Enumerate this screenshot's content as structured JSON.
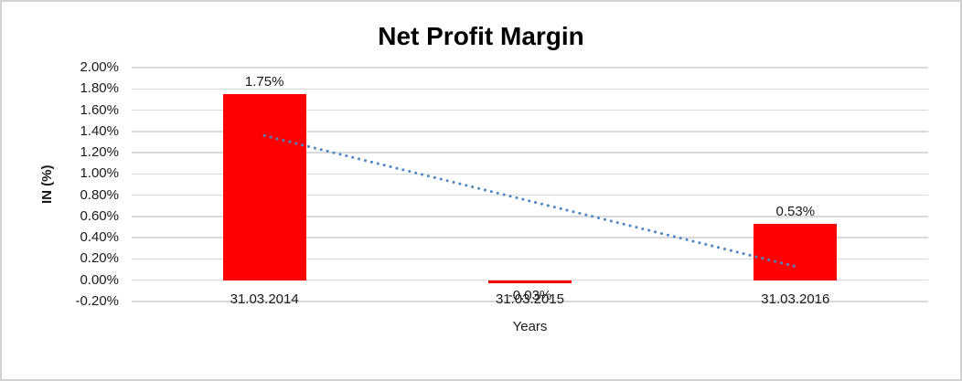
{
  "chart_data": {
    "type": "bar",
    "title": "Net Profit Margin",
    "xlabel": "Years",
    "ylabel": "IN (%)",
    "categories": [
      "31.03.2014",
      "31.03.2015",
      "31.03.2016"
    ],
    "values": [
      1.75,
      -0.03,
      0.53
    ],
    "data_labels": [
      "1.75%",
      "-0.03%",
      "0.53%"
    ],
    "ylim": [
      -0.2,
      2.0
    ],
    "ytick_labels": [
      "2.00%",
      "1.80%",
      "1.60%",
      "1.40%",
      "1.20%",
      "1.00%",
      "0.80%",
      "0.60%",
      "0.40%",
      "0.20%",
      "0.00%",
      "-0.20%"
    ],
    "ytick_values": [
      2.0,
      1.8,
      1.6,
      1.4,
      1.2,
      1.0,
      0.8,
      0.6,
      0.4,
      0.2,
      0.0,
      -0.2
    ],
    "grid": true,
    "legend": "none",
    "bar_color": "#ff0000",
    "gridline_color": "#d9d9d9",
    "text_color": "#1a1a1a",
    "trendline": {
      "style": "dotted",
      "color": "#4f86c6",
      "start_value": 1.36,
      "end_value": 0.13
    }
  }
}
